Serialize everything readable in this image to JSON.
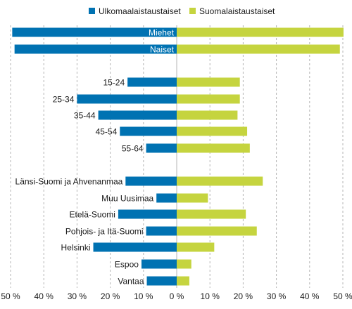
{
  "chart_data": {
    "type": "bar",
    "orientation": "horizontal-diverging",
    "series": [
      {
        "name": "Ulkomaalaistaustaiset",
        "color": "#0072b2",
        "direction": "left",
        "values": [
          49.5,
          48.8,
          14.8,
          30.0,
          23.6,
          17.1,
          9.2,
          15.4,
          6.1,
          17.6,
          9.2,
          25.1,
          10.6,
          9.0
        ]
      },
      {
        "name": "Suomalaistaustaiset",
        "color": "#c5d43f",
        "direction": "right",
        "values": [
          50.2,
          49.1,
          19.0,
          19.0,
          18.3,
          21.2,
          22.0,
          25.9,
          9.4,
          20.8,
          24.1,
          11.3,
          4.4,
          3.8
        ]
      }
    ],
    "categories": [
      "Miehet",
      "Naiset",
      "15-24",
      "25-34",
      "35-44",
      "45-54",
      "55-64",
      "Länsi-Suomi ja Ahvenanmaa",
      "Muu Uusimaa",
      "Etelä-Suomi",
      "Pohjois- ja Itä-Suomi",
      "Helsinki",
      "Espoo",
      "Vantaa"
    ],
    "category_label_position": [
      "inside-bar",
      "inside-bar",
      "left-of-bar",
      "left-of-bar",
      "left-of-bar",
      "left-of-bar",
      "left-of-bar",
      "left-of-bar",
      "left-of-bar",
      "left-of-bar",
      "left-of-bar",
      "left-of-bar",
      "left-of-bar",
      "left-of-bar"
    ],
    "xlim": [
      -50,
      50
    ],
    "xticks": [
      -50,
      -40,
      -30,
      -20,
      -10,
      0,
      10,
      20,
      30,
      40,
      50
    ],
    "xtick_labels": [
      "50 %",
      "40 %",
      "30 %",
      "20 %",
      "10 %",
      "0 %",
      "10 %",
      "20 %",
      "30 %",
      "40 %",
      "50 %"
    ],
    "grid": "vertical-dashed",
    "legend_position": "top-center",
    "title": "",
    "xlabel": "",
    "ylabel": ""
  }
}
